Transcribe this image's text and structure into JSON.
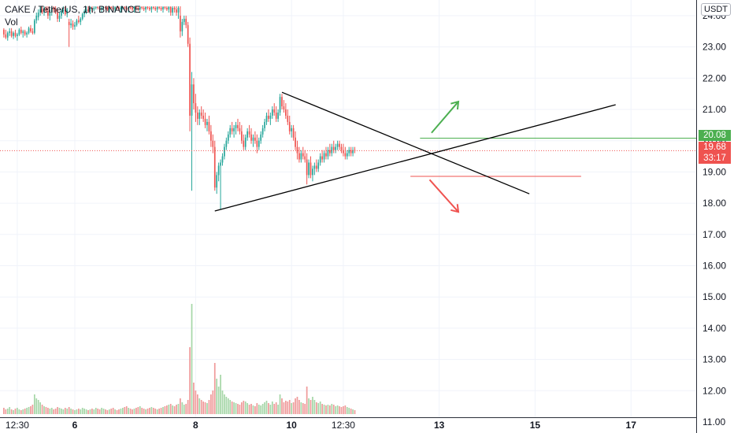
{
  "header": {
    "symbol_line": "CAKE / TetherUS, 1h, BINANCE",
    "volume_label": "Vol"
  },
  "currency_badge": "USDT",
  "price_tags": {
    "level_price": "20.08",
    "last_price": "19.68",
    "countdown": "33:17"
  },
  "colors": {
    "up": "#26a69a",
    "down": "#ef5350",
    "vol_up": "#a5d6a7",
    "vol_down": "#ef9a9a",
    "level_green": "#4caf50",
    "level_red": "#ef5350",
    "trendline": "#000000",
    "grid": "#f0f3fa",
    "axis_text": "#131722"
  },
  "chart_data": {
    "type": "candlestick",
    "title": "CAKE / TetherUS, 1h, BINANCE",
    "y_axis": {
      "ticks": [
        "11.00",
        "12.00",
        "13.00",
        "14.00",
        "15.00",
        "16.00",
        "17.00",
        "18.00",
        "19.00",
        "20.00",
        "21.00",
        "22.00",
        "23.00",
        "24.00"
      ],
      "range": [
        11.0,
        24.3
      ],
      "side": "right"
    },
    "x_axis": {
      "ticks": [
        {
          "label": "12:30",
          "i": 7
        },
        {
          "label": "6",
          "i": 37
        },
        {
          "label": "8",
          "i": 100
        },
        {
          "label": "10",
          "i": 150
        },
        {
          "label": "12:30",
          "i": 177
        },
        {
          "label": "13",
          "i": 227
        },
        {
          "label": "15",
          "i": 277
        },
        {
          "label": "17",
          "i": 327
        }
      ],
      "range_index": [
        -2,
        361
      ]
    },
    "last_price": 19.68,
    "price_levels": [
      {
        "name": "resistance-level",
        "price": 20.08,
        "from_i": 217,
        "to_i": 361,
        "color": "green"
      },
      {
        "name": "support-level",
        "price": 18.86,
        "from_i": 212,
        "to_i": 301,
        "color": "red"
      }
    ],
    "trendlines": [
      {
        "name": "upper-trendline",
        "start": [
          145,
          21.55
        ],
        "end": [
          274,
          18.3
        ]
      },
      {
        "name": "lower-trendline",
        "start": [
          110,
          17.75
        ],
        "end": [
          319,
          21.15
        ]
      }
    ],
    "arrows": [
      {
        "name": "breakout-up-arrow",
        "direction": "up",
        "start": [
          223,
          20.25
        ],
        "end": [
          237,
          21.25
        ],
        "color": "green"
      },
      {
        "name": "breakdown-down-arrow",
        "direction": "down",
        "start": [
          222,
          18.75
        ],
        "end": [
          237,
          17.72
        ],
        "color": "red"
      }
    ],
    "candles": [
      [
        23.55,
        23.6,
        23.3,
        23.4,
        80
      ],
      [
        23.4,
        23.55,
        23.25,
        23.3,
        60
      ],
      [
        23.3,
        23.5,
        23.2,
        23.45,
        70
      ],
      [
        23.45,
        23.6,
        23.35,
        23.5,
        90
      ],
      [
        23.5,
        23.6,
        23.3,
        23.35,
        60
      ],
      [
        23.35,
        23.5,
        23.25,
        23.45,
        50
      ],
      [
        23.45,
        23.55,
        23.3,
        23.35,
        70
      ],
      [
        23.35,
        23.45,
        23.2,
        23.4,
        80
      ],
      [
        23.4,
        23.6,
        23.35,
        23.55,
        60
      ],
      [
        23.55,
        23.65,
        23.4,
        23.45,
        50
      ],
      [
        23.45,
        23.55,
        23.3,
        23.5,
        60
      ],
      [
        23.5,
        23.55,
        23.35,
        23.4,
        70
      ],
      [
        23.4,
        23.5,
        23.3,
        23.45,
        80
      ],
      [
        23.45,
        23.65,
        23.4,
        23.6,
        90
      ],
      [
        23.6,
        23.7,
        23.45,
        23.5,
        100
      ],
      [
        23.5,
        23.6,
        23.4,
        23.45,
        120
      ],
      [
        23.45,
        23.9,
        23.4,
        23.85,
        250
      ],
      [
        23.85,
        24.1,
        23.75,
        24.0,
        200
      ],
      [
        23.95,
        24.2,
        23.85,
        24.1,
        180
      ],
      [
        24.1,
        24.3,
        24.0,
        24.2,
        150
      ],
      [
        24.2,
        24.3,
        24.05,
        24.1,
        120
      ],
      [
        24.1,
        24.3,
        24.0,
        24.25,
        100
      ],
      [
        24.25,
        24.3,
        24.1,
        24.15,
        90
      ],
      [
        24.15,
        24.3,
        23.9,
        24.0,
        80
      ],
      [
        24.0,
        24.2,
        23.85,
        24.1,
        70
      ],
      [
        24.1,
        24.3,
        24.0,
        24.25,
        80
      ],
      [
        24.25,
        24.3,
        24.1,
        24.2,
        60
      ],
      [
        24.2,
        24.3,
        24.05,
        24.1,
        70
      ],
      [
        24.1,
        24.2,
        23.8,
        23.9,
        90
      ],
      [
        23.9,
        24.1,
        23.8,
        24.0,
        80
      ],
      [
        24.0,
        24.2,
        23.9,
        24.15,
        70
      ],
      [
        24.15,
        24.3,
        24.05,
        24.2,
        60
      ],
      [
        24.2,
        24.3,
        24.0,
        24.05,
        80
      ],
      [
        24.05,
        24.25,
        23.95,
        24.2,
        70
      ],
      [
        23.8,
        23.9,
        23.0,
        23.7,
        90
      ],
      [
        23.7,
        23.9,
        23.6,
        23.75,
        70
      ],
      [
        23.75,
        23.85,
        23.55,
        23.65,
        60
      ],
      [
        23.65,
        23.8,
        23.55,
        23.7,
        50
      ],
      [
        23.7,
        23.9,
        23.65,
        23.85,
        60
      ],
      [
        23.85,
        24.0,
        23.75,
        23.8,
        70
      ],
      [
        23.8,
        23.95,
        23.7,
        23.9,
        60
      ],
      [
        23.9,
        24.1,
        23.85,
        24.05,
        80
      ],
      [
        24.05,
        24.2,
        23.95,
        24.15,
        70
      ],
      [
        24.15,
        24.3,
        24.05,
        24.2,
        60
      ],
      [
        24.2,
        24.3,
        24.1,
        24.15,
        50
      ],
      [
        24.15,
        24.3,
        24.05,
        24.25,
        60
      ],
      [
        24.25,
        24.3,
        24.1,
        24.2,
        70
      ],
      [
        24.2,
        24.3,
        24.15,
        24.25,
        60
      ],
      [
        24.25,
        24.3,
        24.2,
        24.28,
        80
      ],
      [
        24.28,
        24.3,
        24.2,
        24.25,
        70
      ],
      [
        24.25,
        24.3,
        24.15,
        24.2,
        60
      ],
      [
        24.2,
        24.3,
        24.1,
        24.25,
        80
      ],
      [
        24.25,
        24.3,
        24.2,
        24.28,
        70
      ],
      [
        24.28,
        24.3,
        24.2,
        24.25,
        60
      ],
      [
        24.25,
        24.3,
        24.15,
        24.2,
        50
      ],
      [
        24.2,
        24.3,
        24.1,
        24.28,
        60
      ],
      [
        24.28,
        24.3,
        24.2,
        24.25,
        70
      ],
      [
        24.25,
        24.3,
        24.15,
        24.2,
        80
      ],
      [
        24.2,
        24.3,
        24.1,
        24.28,
        60
      ],
      [
        24.28,
        24.3,
        24.2,
        24.25,
        50
      ],
      [
        24.25,
        24.3,
        24.15,
        24.2,
        60
      ],
      [
        24.2,
        24.3,
        24.1,
        24.25,
        70
      ],
      [
        24.25,
        24.3,
        24.2,
        24.28,
        80
      ],
      [
        24.28,
        24.3,
        24.2,
        24.25,
        90
      ],
      [
        24.25,
        24.3,
        24.15,
        24.2,
        100
      ],
      [
        24.2,
        24.3,
        24.1,
        24.28,
        80
      ],
      [
        24.28,
        24.3,
        24.2,
        24.25,
        70
      ],
      [
        24.25,
        24.3,
        24.15,
        24.2,
        60
      ],
      [
        24.2,
        24.3,
        24.1,
        24.28,
        70
      ],
      [
        24.28,
        24.3,
        24.2,
        24.25,
        80
      ],
      [
        24.25,
        24.3,
        24.15,
        24.2,
        90
      ],
      [
        24.2,
        24.3,
        24.1,
        24.28,
        100
      ],
      [
        24.28,
        24.3,
        24.2,
        24.25,
        80
      ],
      [
        24.25,
        24.3,
        24.15,
        24.2,
        70
      ],
      [
        24.2,
        24.3,
        24.1,
        24.28,
        60
      ],
      [
        24.28,
        24.3,
        24.2,
        24.25,
        70
      ],
      [
        24.25,
        24.3,
        24.15,
        24.2,
        80
      ],
      [
        24.2,
        24.3,
        24.1,
        24.28,
        90
      ],
      [
        24.28,
        24.3,
        24.2,
        24.25,
        80
      ],
      [
        24.25,
        24.3,
        24.15,
        24.2,
        70
      ],
      [
        24.2,
        24.3,
        24.1,
        24.28,
        60
      ],
      [
        24.28,
        24.3,
        24.2,
        24.25,
        70
      ],
      [
        24.25,
        24.3,
        24.15,
        24.2,
        80
      ],
      [
        24.2,
        24.3,
        24.1,
        24.28,
        90
      ],
      [
        24.28,
        24.3,
        24.2,
        24.25,
        100
      ],
      [
        24.25,
        24.3,
        24.15,
        24.2,
        110
      ],
      [
        24.2,
        24.3,
        24.1,
        24.28,
        120
      ],
      [
        24.28,
        24.3,
        24.0,
        24.1,
        130
      ],
      [
        24.1,
        24.3,
        24.0,
        24.25,
        110
      ],
      [
        24.25,
        24.3,
        24.1,
        24.2,
        100
      ],
      [
        24.2,
        24.3,
        24.0,
        24.1,
        120
      ],
      [
        24.1,
        24.3,
        23.9,
        24.25,
        130
      ],
      [
        24.0,
        24.3,
        23.3,
        23.5,
        200
      ],
      [
        23.5,
        23.9,
        23.35,
        23.8,
        150
      ],
      [
        23.8,
        24.0,
        23.7,
        23.9,
        120
      ],
      [
        23.9,
        24.0,
        23.6,
        23.7,
        130
      ],
      [
        23.7,
        23.8,
        23.0,
        23.1,
        180
      ],
      [
        23.1,
        23.3,
        20.3,
        20.8,
        850
      ],
      [
        20.8,
        22.2,
        18.4,
        21.8,
        1400
      ],
      [
        21.8,
        22.0,
        21.0,
        21.2,
        400
      ],
      [
        21.2,
        21.5,
        20.6,
        20.9,
        300
      ],
      [
        20.9,
        21.1,
        20.5,
        20.7,
        250
      ],
      [
        20.7,
        21.0,
        20.5,
        20.9,
        200
      ],
      [
        20.9,
        21.1,
        20.7,
        20.8,
        180
      ],
      [
        20.8,
        21.0,
        20.6,
        20.7,
        160
      ],
      [
        20.7,
        20.9,
        20.4,
        20.5,
        150
      ],
      [
        20.5,
        20.7,
        20.3,
        20.6,
        140
      ],
      [
        20.6,
        20.8,
        20.2,
        20.3,
        180
      ],
      [
        20.3,
        20.5,
        19.8,
        20.0,
        250
      ],
      [
        20.0,
        20.2,
        19.6,
        19.8,
        300
      ],
      [
        19.8,
        20.0,
        18.4,
        18.5,
        650
      ],
      [
        18.5,
        19.0,
        18.3,
        18.9,
        450
      ],
      [
        18.9,
        19.3,
        18.7,
        19.2,
        350
      ],
      [
        19.2,
        19.4,
        17.8,
        19.3,
        500
      ],
      [
        19.3,
        19.6,
        19.2,
        19.5,
        300
      ],
      [
        19.5,
        19.9,
        19.4,
        19.8,
        250
      ],
      [
        19.8,
        20.1,
        19.7,
        20.0,
        220
      ],
      [
        20.0,
        20.3,
        19.9,
        20.2,
        200
      ],
      [
        20.2,
        20.5,
        20.1,
        20.4,
        180
      ],
      [
        20.4,
        20.6,
        20.2,
        20.3,
        160
      ],
      [
        20.3,
        20.5,
        20.1,
        20.4,
        150
      ],
      [
        20.4,
        20.6,
        20.2,
        20.5,
        140
      ],
      [
        20.5,
        20.7,
        20.3,
        20.4,
        130
      ],
      [
        20.4,
        20.6,
        20.2,
        20.3,
        120
      ],
      [
        20.3,
        20.5,
        19.9,
        20.0,
        150
      ],
      [
        20.0,
        20.2,
        19.7,
        19.8,
        170
      ],
      [
        19.8,
        20.2,
        19.7,
        20.1,
        160
      ],
      [
        20.1,
        20.4,
        20.0,
        20.3,
        140
      ],
      [
        20.3,
        20.5,
        20.1,
        20.2,
        120
      ],
      [
        20.2,
        20.4,
        19.9,
        20.0,
        130
      ],
      [
        20.0,
        20.2,
        19.8,
        20.1,
        110
      ],
      [
        20.1,
        20.3,
        19.9,
        20.0,
        100
      ],
      [
        20.0,
        20.2,
        19.6,
        19.8,
        140
      ],
      [
        19.8,
        20.1,
        19.7,
        20.0,
        120
      ],
      [
        20.0,
        20.3,
        19.9,
        20.2,
        110
      ],
      [
        20.2,
        20.5,
        20.1,
        20.4,
        130
      ],
      [
        20.4,
        20.7,
        20.3,
        20.6,
        150
      ],
      [
        20.6,
        20.9,
        20.5,
        20.8,
        170
      ],
      [
        20.8,
        21.0,
        20.6,
        20.7,
        140
      ],
      [
        20.7,
        20.9,
        20.5,
        20.8,
        120
      ],
      [
        20.8,
        21.1,
        20.7,
        21.0,
        160
      ],
      [
        21.0,
        21.2,
        20.8,
        20.9,
        130
      ],
      [
        20.9,
        21.1,
        20.6,
        20.7,
        150
      ],
      [
        20.7,
        21.0,
        20.6,
        20.9,
        120
      ],
      [
        20.9,
        21.5,
        20.8,
        21.4,
        250
      ],
      [
        21.4,
        21.5,
        21.0,
        21.1,
        200
      ],
      [
        21.1,
        21.3,
        20.9,
        21.0,
        150
      ],
      [
        21.0,
        21.2,
        20.7,
        20.8,
        170
      ],
      [
        20.8,
        21.0,
        20.5,
        20.6,
        160
      ],
      [
        20.6,
        20.8,
        20.2,
        20.3,
        180
      ],
      [
        20.3,
        20.5,
        20.1,
        20.4,
        140
      ],
      [
        20.4,
        20.5,
        20.0,
        20.1,
        150
      ],
      [
        20.1,
        20.3,
        19.7,
        19.8,
        200
      ],
      [
        19.8,
        20.0,
        19.4,
        19.6,
        220
      ],
      [
        19.6,
        19.8,
        19.3,
        19.4,
        180
      ],
      [
        19.4,
        19.7,
        19.3,
        19.6,
        150
      ],
      [
        19.6,
        19.8,
        19.4,
        19.5,
        140
      ],
      [
        19.5,
        19.7,
        19.3,
        19.4,
        130
      ],
      [
        19.4,
        19.6,
        18.6,
        18.9,
        350
      ],
      [
        18.9,
        19.4,
        18.8,
        19.3,
        200
      ],
      [
        19.3,
        19.5,
        18.8,
        18.9,
        180
      ],
      [
        18.9,
        19.2,
        18.7,
        19.1,
        220
      ],
      [
        19.1,
        19.3,
        18.9,
        19.2,
        180
      ],
      [
        19.2,
        19.4,
        19.0,
        19.1,
        150
      ],
      [
        19.1,
        19.4,
        19.0,
        19.3,
        140
      ],
      [
        19.3,
        19.6,
        19.2,
        19.5,
        160
      ],
      [
        19.5,
        19.7,
        19.3,
        19.4,
        130
      ],
      [
        19.4,
        19.7,
        19.3,
        19.6,
        120
      ],
      [
        19.6,
        19.8,
        19.4,
        19.5,
        110
      ],
      [
        19.5,
        19.8,
        19.4,
        19.7,
        120
      ],
      [
        19.7,
        19.9,
        19.5,
        19.6,
        110
      ],
      [
        19.6,
        19.9,
        19.5,
        19.8,
        130
      ],
      [
        19.8,
        20.0,
        19.6,
        19.7,
        120
      ],
      [
        19.7,
        19.9,
        19.6,
        19.8,
        100
      ],
      [
        19.8,
        20.0,
        19.7,
        19.9,
        110
      ],
      [
        19.9,
        20.0,
        19.7,
        19.8,
        100
      ],
      [
        19.8,
        19.9,
        19.6,
        19.7,
        90
      ],
      [
        19.7,
        19.9,
        19.5,
        19.6,
        100
      ],
      [
        19.6,
        19.8,
        19.4,
        19.5,
        110
      ],
      [
        19.5,
        19.7,
        19.4,
        19.6,
        90
      ],
      [
        19.6,
        19.8,
        19.5,
        19.7,
        80
      ],
      [
        19.7,
        19.8,
        19.5,
        19.6,
        70
      ],
      [
        19.6,
        19.8,
        19.5,
        19.7,
        60
      ],
      [
        19.7,
        19.8,
        19.6,
        19.68,
        50
      ]
    ],
    "candle_start_index": 0,
    "candle_fields": [
      "open",
      "high",
      "low",
      "close",
      "volume"
    ]
  }
}
